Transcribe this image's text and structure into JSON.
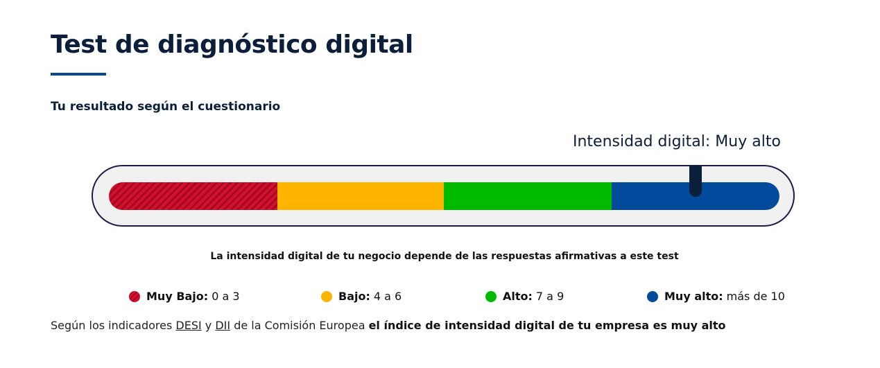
{
  "page": {
    "title": "Test de diagnóstico digital",
    "subtitle": "Tu resultado según el cuestionario"
  },
  "gauge": {
    "label": "Intensidad digital: Muy alto",
    "level_fraction": 0.875,
    "segments": [
      {
        "name": "Muy Bajo",
        "color": "#d5102e",
        "pattern": "striped"
      },
      {
        "name": "Bajo",
        "color": "#ffb400"
      },
      {
        "name": "Alto",
        "color": "#00ba00"
      },
      {
        "name": "Muy alto",
        "color": "#014a9c"
      }
    ],
    "note": "La intensidad digital de tu negocio depende de las respuestas afirmativas a este test"
  },
  "legend": {
    "items": [
      {
        "name": "Muy Bajo:",
        "range": "0 a 3",
        "color": "#d5102e"
      },
      {
        "name": "Bajo:",
        "range": "4 a 6",
        "color": "#ffb400"
      },
      {
        "name": "Alto:",
        "range": "7 a 9",
        "color": "#00ba00"
      },
      {
        "name": "Muy alto:",
        "range": "más de 10",
        "color": "#014a9c"
      }
    ]
  },
  "footer": {
    "prefix": "Según los indicadores ",
    "link1": "DESI",
    "connector": " y ",
    "link2": "DII",
    "middle": " de la Comisión Europea ",
    "emphasis": "el índice de intensidad digital de tu empresa es muy alto"
  }
}
